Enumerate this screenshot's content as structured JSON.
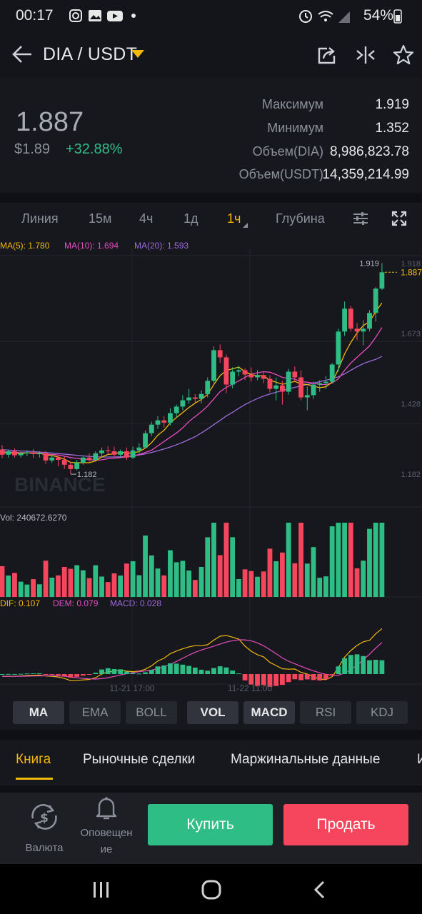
{
  "status_bar": {
    "time": "00:17",
    "battery": "54%"
  },
  "header": {
    "pair": "DIA / USDT"
  },
  "ticker": {
    "last_price": "1.887",
    "price_usd": "$1.89",
    "change": "+32.88%",
    "stats": [
      {
        "label": "Максимум",
        "value": "1.919"
      },
      {
        "label": "Минимум",
        "value": "1.352"
      },
      {
        "label": "Объем(DIA)",
        "value": "8,986,823.78"
      },
      {
        "label": "Объем(USDT)",
        "value": "14,359,214.99"
      }
    ]
  },
  "timeframes": [
    "Линия",
    "15м",
    "4ч",
    "1д",
    "1ч",
    "Глубина"
  ],
  "active_timeframe": "1ч",
  "indicators_legend": {
    "ma5": "MA(5): 1.780",
    "ma10": "MA(10): 1.694",
    "ma20": "MA(20): 1.593",
    "vol": "Vol: 240672.6270",
    "dif": "DIF: 0.107",
    "dem": "DEM: 0.079",
    "macd": "MACD: 0.028"
  },
  "chart_data": {
    "type": "candlestick",
    "y_ticks": [
      "1.918",
      "1.673",
      "1.428",
      "1.182"
    ],
    "ylim": [
      1.06,
      1.97
    ],
    "x_ticks": [
      "11-21 17:00",
      "11-22 11:00"
    ],
    "high_label": "1.919",
    "low_label": "1.182",
    "last_price_label": "1.887",
    "watermark": "BINANCE",
    "candles": [
      {
        "o": 1.268,
        "h": 1.283,
        "c": 1.25,
        "l": 1.238
      },
      {
        "o": 1.25,
        "h": 1.268,
        "c": 1.262,
        "l": 1.24
      },
      {
        "o": 1.262,
        "h": 1.272,
        "c": 1.248,
        "l": 1.24
      },
      {
        "o": 1.248,
        "h": 1.26,
        "c": 1.255,
        "l": 1.24
      },
      {
        "o": 1.255,
        "h": 1.266,
        "c": 1.258,
        "l": 1.245
      },
      {
        "o": 1.258,
        "h": 1.27,
        "c": 1.252,
        "l": 1.238
      },
      {
        "o": 1.252,
        "h": 1.262,
        "c": 1.255,
        "l": 1.24
      },
      {
        "o": 1.255,
        "h": 1.263,
        "c": 1.23,
        "l": 1.218
      },
      {
        "o": 1.23,
        "h": 1.248,
        "c": 1.24,
        "l": 1.222
      },
      {
        "o": 1.24,
        "h": 1.25,
        "c": 1.232,
        "l": 1.21
      },
      {
        "o": 1.232,
        "h": 1.245,
        "c": 1.215,
        "l": 1.2
      },
      {
        "o": 1.215,
        "h": 1.226,
        "c": 1.2,
        "l": 1.182
      },
      {
        "o": 1.2,
        "h": 1.232,
        "c": 1.222,
        "l": 1.195
      },
      {
        "o": 1.222,
        "h": 1.245,
        "c": 1.24,
        "l": 1.215
      },
      {
        "o": 1.24,
        "h": 1.255,
        "c": 1.232,
        "l": 1.225
      },
      {
        "o": 1.232,
        "h": 1.262,
        "c": 1.255,
        "l": 1.228
      },
      {
        "o": 1.255,
        "h": 1.275,
        "c": 1.265,
        "l": 1.245
      },
      {
        "o": 1.265,
        "h": 1.28,
        "c": 1.262,
        "l": 1.25
      },
      {
        "o": 1.262,
        "h": 1.278,
        "c": 1.25,
        "l": 1.242
      },
      {
        "o": 1.25,
        "h": 1.268,
        "c": 1.262,
        "l": 1.24
      },
      {
        "o": 1.262,
        "h": 1.275,
        "c": 1.24,
        "l": 1.232
      },
      {
        "o": 1.24,
        "h": 1.278,
        "c": 1.265,
        "l": 1.235
      },
      {
        "o": 1.265,
        "h": 1.29,
        "c": 1.275,
        "l": 1.255
      },
      {
        "o": 1.275,
        "h": 1.335,
        "c": 1.325,
        "l": 1.27
      },
      {
        "o": 1.325,
        "h": 1.365,
        "c": 1.355,
        "l": 1.315
      },
      {
        "o": 1.355,
        "h": 1.385,
        "c": 1.37,
        "l": 1.34
      },
      {
        "o": 1.37,
        "h": 1.385,
        "c": 1.362,
        "l": 1.345
      },
      {
        "o": 1.362,
        "h": 1.412,
        "c": 1.395,
        "l": 1.352
      },
      {
        "o": 1.395,
        "h": 1.425,
        "c": 1.418,
        "l": 1.38
      },
      {
        "o": 1.418,
        "h": 1.458,
        "c": 1.44,
        "l": 1.405
      },
      {
        "o": 1.44,
        "h": 1.48,
        "c": 1.45,
        "l": 1.428
      },
      {
        "o": 1.45,
        "h": 1.462,
        "c": 1.445,
        "l": 1.43
      },
      {
        "o": 1.445,
        "h": 1.475,
        "c": 1.462,
        "l": 1.43
      },
      {
        "o": 1.462,
        "h": 1.52,
        "c": 1.508,
        "l": 1.45
      },
      {
        "o": 1.508,
        "h": 1.628,
        "c": 1.615,
        "l": 1.5
      },
      {
        "o": 1.615,
        "h": 1.635,
        "c": 1.59,
        "l": 1.57
      },
      {
        "o": 1.59,
        "h": 1.6,
        "c": 1.495,
        "l": 1.465
      },
      {
        "o": 1.495,
        "h": 1.555,
        "c": 1.54,
        "l": 1.482
      },
      {
        "o": 1.54,
        "h": 1.56,
        "c": 1.545,
        "l": 1.525
      },
      {
        "o": 1.545,
        "h": 1.552,
        "c": 1.53,
        "l": 1.51
      },
      {
        "o": 1.53,
        "h": 1.555,
        "c": 1.52,
        "l": 1.505
      },
      {
        "o": 1.52,
        "h": 1.545,
        "c": 1.528,
        "l": 1.51
      },
      {
        "o": 1.528,
        "h": 1.54,
        "c": 1.515,
        "l": 1.5
      },
      {
        "o": 1.515,
        "h": 1.528,
        "c": 1.48,
        "l": 1.468
      },
      {
        "o": 1.48,
        "h": 1.52,
        "c": 1.492,
        "l": 1.44
      },
      {
        "o": 1.492,
        "h": 1.508,
        "c": 1.47,
        "l": 1.425
      },
      {
        "o": 1.47,
        "h": 1.55,
        "c": 1.54,
        "l": 1.46
      },
      {
        "o": 1.54,
        "h": 1.558,
        "c": 1.52,
        "l": 1.508
      },
      {
        "o": 1.52,
        "h": 1.545,
        "c": 1.45,
        "l": 1.44
      },
      {
        "o": 1.45,
        "h": 1.488,
        "c": 1.458,
        "l": 1.405
      },
      {
        "o": 1.458,
        "h": 1.505,
        "c": 1.495,
        "l": 1.445
      },
      {
        "o": 1.495,
        "h": 1.51,
        "c": 1.5,
        "l": 1.47
      },
      {
        "o": 1.5,
        "h": 1.525,
        "c": 1.505,
        "l": 1.48
      },
      {
        "o": 1.505,
        "h": 1.57,
        "c": 1.565,
        "l": 1.5
      },
      {
        "o": 1.565,
        "h": 1.69,
        "c": 1.68,
        "l": 1.54
      },
      {
        "o": 1.68,
        "h": 1.785,
        "c": 1.76,
        "l": 1.665
      },
      {
        "o": 1.76,
        "h": 1.77,
        "c": 1.69,
        "l": 1.68
      },
      {
        "o": 1.69,
        "h": 1.71,
        "c": 1.68,
        "l": 1.65
      },
      {
        "o": 1.68,
        "h": 1.72,
        "c": 1.69,
        "l": 1.632
      },
      {
        "o": 1.69,
        "h": 1.755,
        "c": 1.745,
        "l": 1.68
      },
      {
        "o": 1.745,
        "h": 1.835,
        "c": 1.83,
        "l": 1.715
      },
      {
        "o": 1.83,
        "h": 1.919,
        "c": 1.887,
        "l": 1.825
      }
    ],
    "ma5": [
      1.258,
      1.257,
      1.256,
      1.255,
      1.256,
      1.256,
      1.255,
      1.25,
      1.247,
      1.242,
      1.234,
      1.223,
      1.222,
      1.222,
      1.222,
      1.228,
      1.242,
      1.251,
      1.253,
      1.259,
      1.256,
      1.256,
      1.261,
      1.273,
      1.292,
      1.318,
      1.335,
      1.361,
      1.38,
      1.397,
      1.415,
      1.43,
      1.443,
      1.461,
      1.495,
      1.526,
      1.544,
      1.55,
      1.556,
      1.54,
      1.53,
      1.526,
      1.526,
      1.51,
      1.503,
      1.496,
      1.5,
      1.506,
      1.497,
      1.495,
      1.489,
      1.484,
      1.487,
      1.504,
      1.549,
      1.602,
      1.642,
      1.675,
      1.701,
      1.715,
      1.749,
      1.78
    ],
    "ma10": [
      1.26,
      1.259,
      1.258,
      1.257,
      1.257,
      1.256,
      1.255,
      1.253,
      1.251,
      1.249,
      1.245,
      1.24,
      1.237,
      1.235,
      1.232,
      1.231,
      1.232,
      1.236,
      1.238,
      1.24,
      1.242,
      1.246,
      1.251,
      1.258,
      1.266,
      1.281,
      1.296,
      1.311,
      1.326,
      1.344,
      1.366,
      1.383,
      1.4,
      1.42,
      1.445,
      1.47,
      1.485,
      1.496,
      1.508,
      1.52,
      1.532,
      1.536,
      1.54,
      1.538,
      1.53,
      1.52,
      1.516,
      1.514,
      1.505,
      1.503,
      1.5,
      1.495,
      1.495,
      1.5,
      1.515,
      1.545,
      1.57,
      1.59,
      1.61,
      1.63,
      1.66,
      1.694
    ],
    "ma20": [
      1.268,
      1.266,
      1.265,
      1.263,
      1.262,
      1.261,
      1.259,
      1.258,
      1.256,
      1.254,
      1.252,
      1.25,
      1.248,
      1.246,
      1.244,
      1.243,
      1.242,
      1.242,
      1.242,
      1.243,
      1.244,
      1.246,
      1.249,
      1.253,
      1.258,
      1.264,
      1.27,
      1.277,
      1.285,
      1.293,
      1.303,
      1.313,
      1.326,
      1.34,
      1.355,
      1.37,
      1.385,
      1.398,
      1.412,
      1.425,
      1.436,
      1.446,
      1.455,
      1.462,
      1.468,
      1.474,
      1.48,
      1.485,
      1.49,
      1.495,
      1.5,
      1.505,
      1.51,
      1.515,
      1.522,
      1.532,
      1.545,
      1.557,
      1.568,
      1.576,
      1.583,
      1.593
    ]
  },
  "indicator_buttons": [
    "MA",
    "EMA",
    "BOLL",
    "VOL",
    "MACD",
    "RSI",
    "KDJ"
  ],
  "active_indicators": [
    "MA",
    "VOL",
    "MACD"
  ],
  "tabs": [
    "Книга",
    "Рыночные сделки",
    "Маржинальные данные",
    "И"
  ],
  "active_tab": "Книга",
  "bottom_bar": {
    "currency": "Валюта",
    "alerts_line1": "Оповещен",
    "alerts_line2": "ие",
    "buy": "Купить",
    "sell": "Продать"
  },
  "colors": {
    "up": "#2ebd85",
    "down": "#f6465d",
    "accent": "#f0b90b",
    "ma5": "#f0b90b",
    "ma10": "#e64dbf",
    "ma20": "#9d6bdb",
    "bg": "#17181d"
  }
}
